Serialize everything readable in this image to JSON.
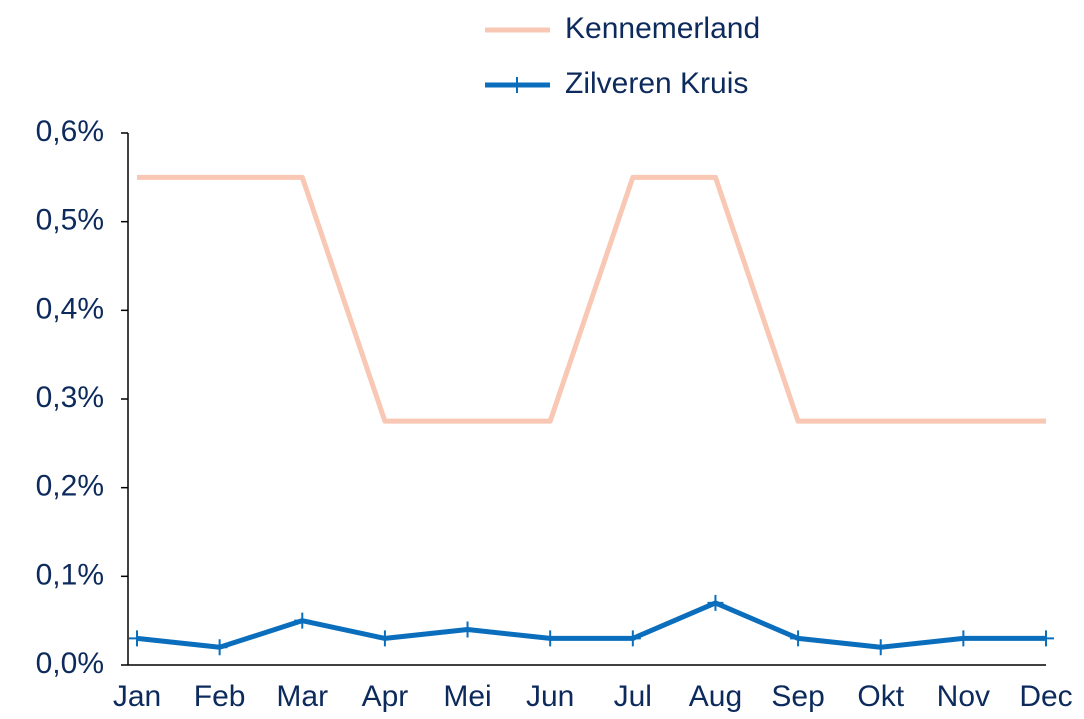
{
  "chart_data": {
    "type": "line",
    "categories": [
      "Jan",
      "Feb",
      "Mar",
      "Apr",
      "Mei",
      "Jun",
      "Jul",
      "Aug",
      "Sep",
      "Okt",
      "Nov",
      "Dec"
    ],
    "series": [
      {
        "name": "Kennemerland",
        "color": "#f9c8b4",
        "values": [
          0.55,
          0.55,
          0.55,
          0.275,
          0.275,
          0.275,
          0.55,
          0.55,
          0.275,
          0.275,
          0.275,
          0.275
        ]
      },
      {
        "name": "Zilveren Kruis",
        "color": "#0a6ebd",
        "marker": "plus",
        "values": [
          0.03,
          0.02,
          0.05,
          0.03,
          0.04,
          0.03,
          0.03,
          0.07,
          0.03,
          0.02,
          0.03,
          0.03
        ]
      }
    ],
    "ylim": [
      0,
      0.6
    ],
    "yticks": [
      {
        "value": 0,
        "label": "0,0%"
      },
      {
        "value": 0.1,
        "label": "0,1%"
      },
      {
        "value": 0.2,
        "label": "0,2%"
      },
      {
        "value": 0.3,
        "label": "0,3%"
      },
      {
        "value": 0.4,
        "label": "0,4%"
      },
      {
        "value": 0.5,
        "label": "0,5%"
      },
      {
        "value": 0.6,
        "label": "0,6%"
      }
    ],
    "grid": false,
    "legend": "top"
  }
}
